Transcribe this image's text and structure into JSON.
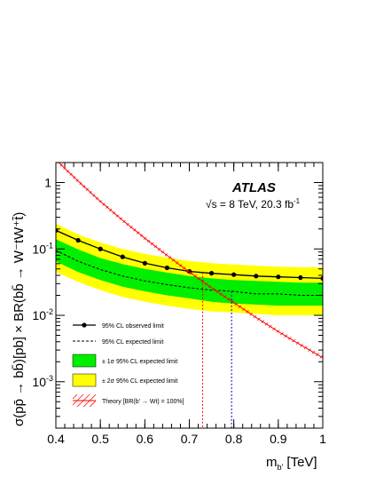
{
  "chart_data": {
    "type": "line",
    "title": "",
    "experiment": "ATLAS",
    "energy_label": "√s = 8 TeV, 20.3 fb",
    "energy_label_sup": "-1",
    "xlabel": "m",
    "xlabel_sub": "b'",
    "xlabel_unit": " [TeV]",
    "ylabel": "σ(pp̄ → bb̄)[pb] × BR(bb̄ → W⁻tW⁺t̄)",
    "xlim": [
      0.4,
      1.0
    ],
    "ylim": [
      0.0002,
      2.0
    ],
    "yscale": "log",
    "x_ticks": [
      {
        "value": 0.4,
        "label": "0.4"
      },
      {
        "value": 0.5,
        "label": "0.5"
      },
      {
        "value": 0.6,
        "label": "0.6"
      },
      {
        "value": 0.7,
        "label": "0.7"
      },
      {
        "value": 0.8,
        "label": "0.8"
      },
      {
        "value": 0.9,
        "label": "0.9"
      },
      {
        "value": 1.0,
        "label": "1"
      }
    ],
    "y_ticks": [
      {
        "value": 0.001,
        "label": "10",
        "sup": "-3"
      },
      {
        "value": 0.01,
        "label": "10",
        "sup": "-2"
      },
      {
        "value": 0.1,
        "label": "10",
        "sup": "-1"
      },
      {
        "value": 1,
        "label": "1",
        "sup": ""
      }
    ],
    "x": [
      0.4,
      0.45,
      0.5,
      0.55,
      0.6,
      0.65,
      0.7,
      0.75,
      0.8,
      0.85,
      0.9,
      0.95,
      1.0
    ],
    "series": [
      {
        "name": "95% CL observed limit",
        "role": "observed",
        "color": "#000000",
        "values": [
          0.19,
          0.135,
          0.1,
          0.076,
          0.061,
          0.052,
          0.046,
          0.043,
          0.041,
          0.039,
          0.038,
          0.037,
          0.036
        ]
      },
      {
        "name": "95% CL expected limit",
        "role": "expected",
        "color": "#000000",
        "values": [
          0.095,
          0.065,
          0.049,
          0.039,
          0.033,
          0.029,
          0.026,
          0.024,
          0.023,
          0.021,
          0.021,
          0.02,
          0.02
        ]
      },
      {
        "name": "± 1σ 95% CL expected limit",
        "role": "band1",
        "color": "#00ee00",
        "lower": [
          0.065,
          0.045,
          0.034,
          0.027,
          0.023,
          0.02,
          0.018,
          0.016,
          0.015,
          0.0145,
          0.014,
          0.014,
          0.014
        ],
        "upper": [
          0.14,
          0.098,
          0.073,
          0.059,
          0.05,
          0.044,
          0.039,
          0.036,
          0.034,
          0.033,
          0.032,
          0.031,
          0.031
        ]
      },
      {
        "name": "± 2σ 95% CL expected limit",
        "role": "band2",
        "color": "#ffff00",
        "lower": [
          0.045,
          0.032,
          0.024,
          0.019,
          0.016,
          0.014,
          0.0125,
          0.0115,
          0.011,
          0.0105,
          0.01,
          0.01,
          0.01
        ],
        "upper": [
          0.24,
          0.165,
          0.125,
          0.1,
          0.084,
          0.074,
          0.066,
          0.061,
          0.058,
          0.056,
          0.054,
          0.053,
          0.053
        ]
      },
      {
        "name": "Theory [BR(b' → Wt) = 100%]",
        "role": "theory",
        "color": "#ff0000",
        "values": [
          2.2,
          1.05,
          0.52,
          0.27,
          0.145,
          0.08,
          0.045,
          0.026,
          0.0155,
          0.0093,
          0.0057,
          0.0036,
          0.0023
        ]
      }
    ],
    "limit_lines": [
      {
        "x": 0.73,
        "color": "#ff0000"
      },
      {
        "x": 0.795,
        "color": "#0000cc"
      }
    ],
    "legend_position": "bottom-left"
  }
}
